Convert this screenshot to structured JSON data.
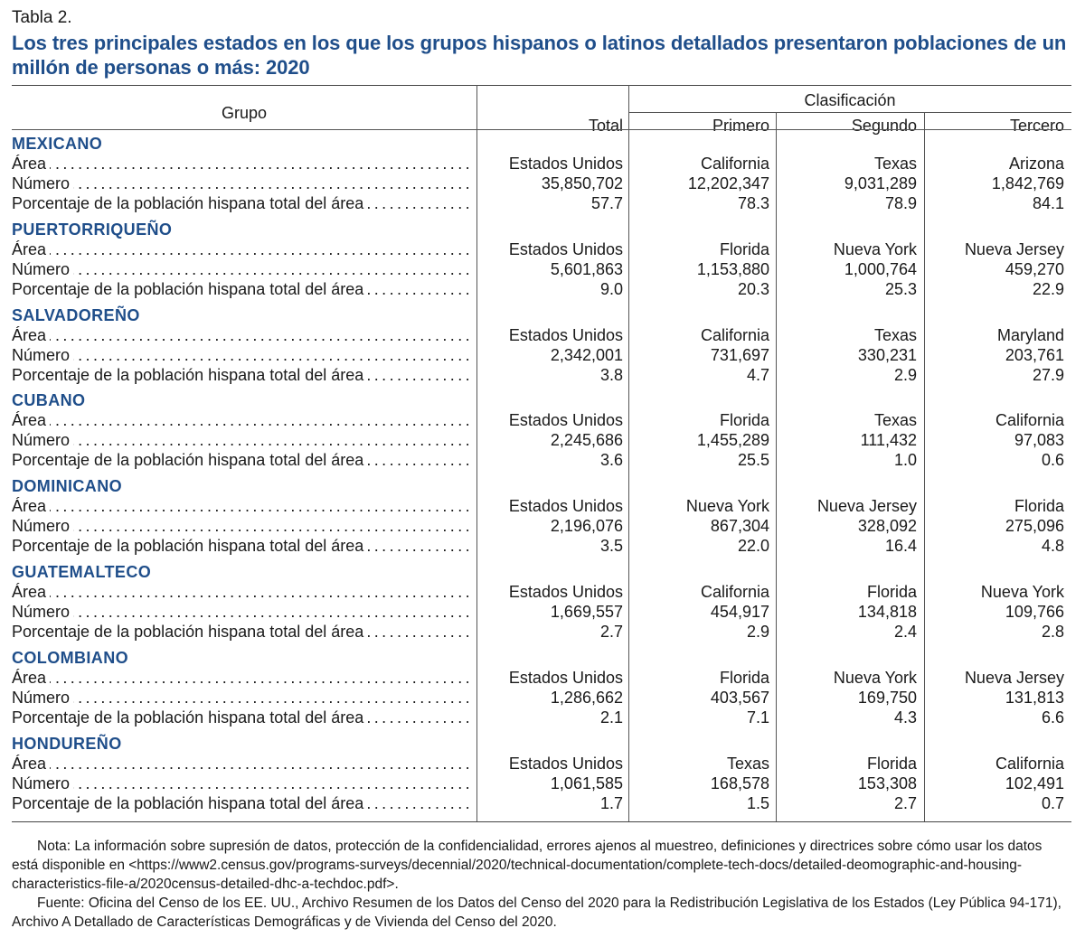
{
  "table_label": "Tabla 2.",
  "title": "Los tres principales estados en los que los grupos hispanos o latinos detallados presentaron poblaciones de un millón de personas o más: 2020",
  "headers": {
    "grupo": "Grupo",
    "clasificacion": "Clasificación",
    "total": "Total",
    "primero": "Primero",
    "segundo": "Segundo",
    "tercero": "Tercero"
  },
  "row_labels": {
    "area": "Área",
    "numero": "Número",
    "porcentaje": "Porcentaje de la población hispana total del área"
  },
  "groups": [
    {
      "name": "MEXICANO",
      "area": [
        "Estados Unidos",
        "California",
        "Texas",
        "Arizona"
      ],
      "numero": [
        "35,850,702",
        "12,202,347",
        "9,031,289",
        "1,842,769"
      ],
      "porcentaje": [
        "57.7",
        "78.3",
        "78.9",
        "84.1"
      ]
    },
    {
      "name": "PUERTORRIQUEÑO",
      "area": [
        "Estados Unidos",
        "Florida",
        "Nueva York",
        "Nueva Jersey"
      ],
      "numero": [
        "5,601,863",
        "1,153,880",
        "1,000,764",
        "459,270"
      ],
      "porcentaje": [
        "9.0",
        "20.3",
        "25.3",
        "22.9"
      ]
    },
    {
      "name": "SALVADOREÑO",
      "area": [
        "Estados Unidos",
        "California",
        "Texas",
        "Maryland"
      ],
      "numero": [
        "2,342,001",
        "731,697",
        "330,231",
        "203,761"
      ],
      "porcentaje": [
        "3.8",
        "4.7",
        "2.9",
        "27.9"
      ]
    },
    {
      "name": "CUBANO",
      "area": [
        "Estados Unidos",
        "Florida",
        "Texas",
        "California"
      ],
      "numero": [
        "2,245,686",
        "1,455,289",
        "111,432",
        "97,083"
      ],
      "porcentaje": [
        "3.6",
        "25.5",
        "1.0",
        "0.6"
      ]
    },
    {
      "name": "DOMINICANO",
      "area": [
        "Estados Unidos",
        "Nueva York",
        "Nueva Jersey",
        "Florida"
      ],
      "numero": [
        "2,196,076",
        "867,304",
        "328,092",
        "275,096"
      ],
      "porcentaje": [
        "3.5",
        "22.0",
        "16.4",
        "4.8"
      ]
    },
    {
      "name": "GUATEMALTECO",
      "area": [
        "Estados Unidos",
        "California",
        "Florida",
        "Nueva York"
      ],
      "numero": [
        "1,669,557",
        "454,917",
        "134,818",
        "109,766"
      ],
      "porcentaje": [
        "2.7",
        "2.9",
        "2.4",
        "2.8"
      ]
    },
    {
      "name": "COLOMBIANO",
      "area": [
        "Estados Unidos",
        "Florida",
        "Nueva York",
        "Nueva Jersey"
      ],
      "numero": [
        "1,286,662",
        "403,567",
        "169,750",
        "131,813"
      ],
      "porcentaje": [
        "2.1",
        "7.1",
        "4.3",
        "6.6"
      ]
    },
    {
      "name": "HONDUREÑO",
      "area": [
        "Estados Unidos",
        "Texas",
        "Florida",
        "California"
      ],
      "numero": [
        "1,061,585",
        "168,578",
        "153,308",
        "102,491"
      ],
      "porcentaje": [
        "1.7",
        "1.5",
        "2.7",
        "0.7"
      ]
    }
  ],
  "notes": {
    "nota": "Nota: La información sobre supresión de datos, protección de la confidencialidad, errores ajenos al muestreo, definiciones y directrices sobre cómo usar los datos está disponible en <https://www2.census.gov/programs-surveys/decennial/2020/technical-documentation/complete-tech-docs/detailed-deomographic-and-housing-characteristics-file-a/2020census-detailed-dhc-a-techdoc.pdf>.",
    "fuente": "Fuente: Oficina del Censo de los EE. UU., Archivo Resumen de los Datos del Censo del 2020 para la Redistribución Legislativa de los Estados (Ley Pública 94-171), Archivo A Detallado de Características Demográficas y de Vivienda del Censo del 2020."
  }
}
